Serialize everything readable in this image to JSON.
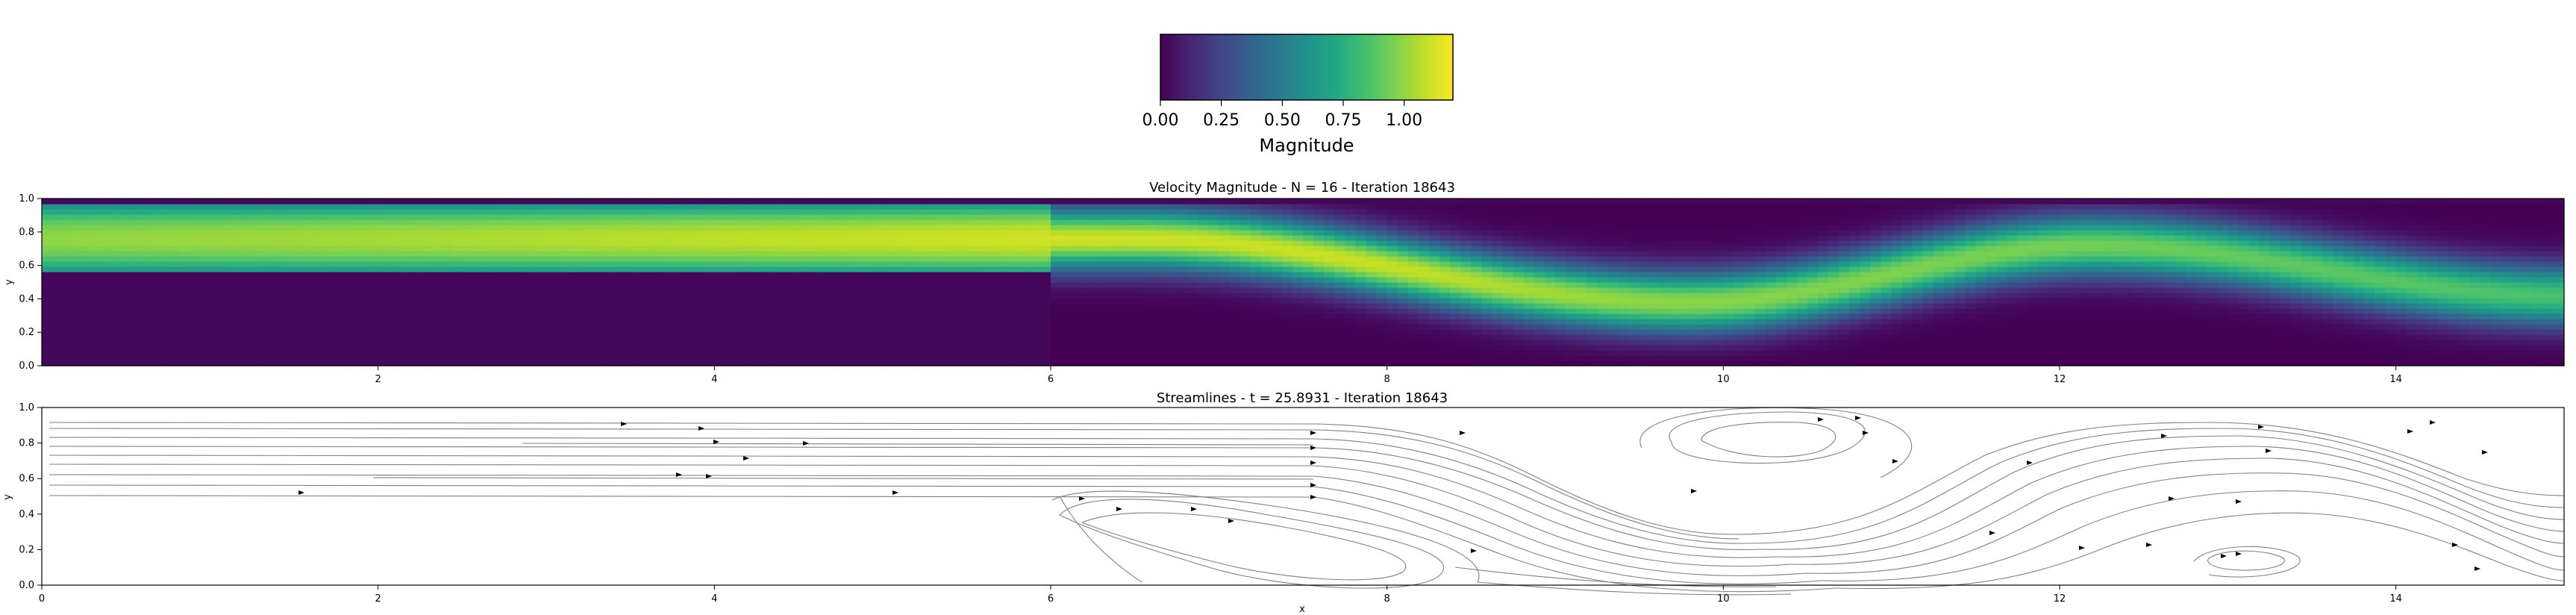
{
  "colorbar": {
    "label": "Magnitude",
    "ticks": [
      "0.00",
      "0.25",
      "0.50",
      "0.75",
      "1.00"
    ],
    "tick_values": [
      0,
      0.25,
      0.5,
      0.75,
      1.0
    ],
    "range": [
      0,
      1.2
    ],
    "colormap": "viridis",
    "colors": [
      "#440154",
      "#3b528b",
      "#21918c",
      "#5ec962",
      "#fde725"
    ]
  },
  "chart_data": [
    {
      "type": "heatmap",
      "title": "Velocity Magnitude - N = 16 - Iteration 18643",
      "xlabel": "",
      "ylabel": "y",
      "xlim": [
        0,
        15
      ],
      "ylim": [
        0,
        1
      ],
      "x_ticks": [
        "2",
        "4",
        "6",
        "8",
        "10",
        "12",
        "14"
      ],
      "y_ticks": [
        "0.0",
        "0.2",
        "0.4",
        "0.6",
        "0.8",
        "1.0"
      ],
      "value_range": [
        0,
        1.2
      ],
      "description_of_field": [
        {
          "x": 0,
          "jet_center_y": 0.76,
          "jet_halfwidth": 0.2,
          "peak": 1.0
        },
        {
          "x": 6,
          "jet_center_y": 0.76,
          "jet_halfwidth": 0.2,
          "peak": 1.12
        },
        {
          "x": 8,
          "jet_center_y": 0.62,
          "jet_halfwidth": 0.2,
          "peak": 1.1
        },
        {
          "x": 9.5,
          "jet_center_y": 0.38,
          "jet_halfwidth": 0.2,
          "peak": 1.0
        },
        {
          "x": 12,
          "jet_center_y": 0.72,
          "jet_halfwidth": 0.2,
          "peak": 0.95
        },
        {
          "x": 15,
          "jet_center_y": 0.42,
          "jet_halfwidth": 0.2,
          "peak": 0.85
        }
      ]
    },
    {
      "type": "streamlines",
      "title": "Streamlines - t = 25.8931 - Iteration 18643",
      "xlabel": "x",
      "ylabel": "y",
      "xlim": [
        0,
        15
      ],
      "ylim": [
        0,
        1
      ],
      "x_ticks": [
        "0",
        "2",
        "4",
        "6",
        "8",
        "10",
        "12",
        "14"
      ],
      "y_ticks": [
        "0.0",
        "0.2",
        "0.4",
        "0.6",
        "0.8",
        "1.0"
      ],
      "line_color": "#808080"
    }
  ]
}
